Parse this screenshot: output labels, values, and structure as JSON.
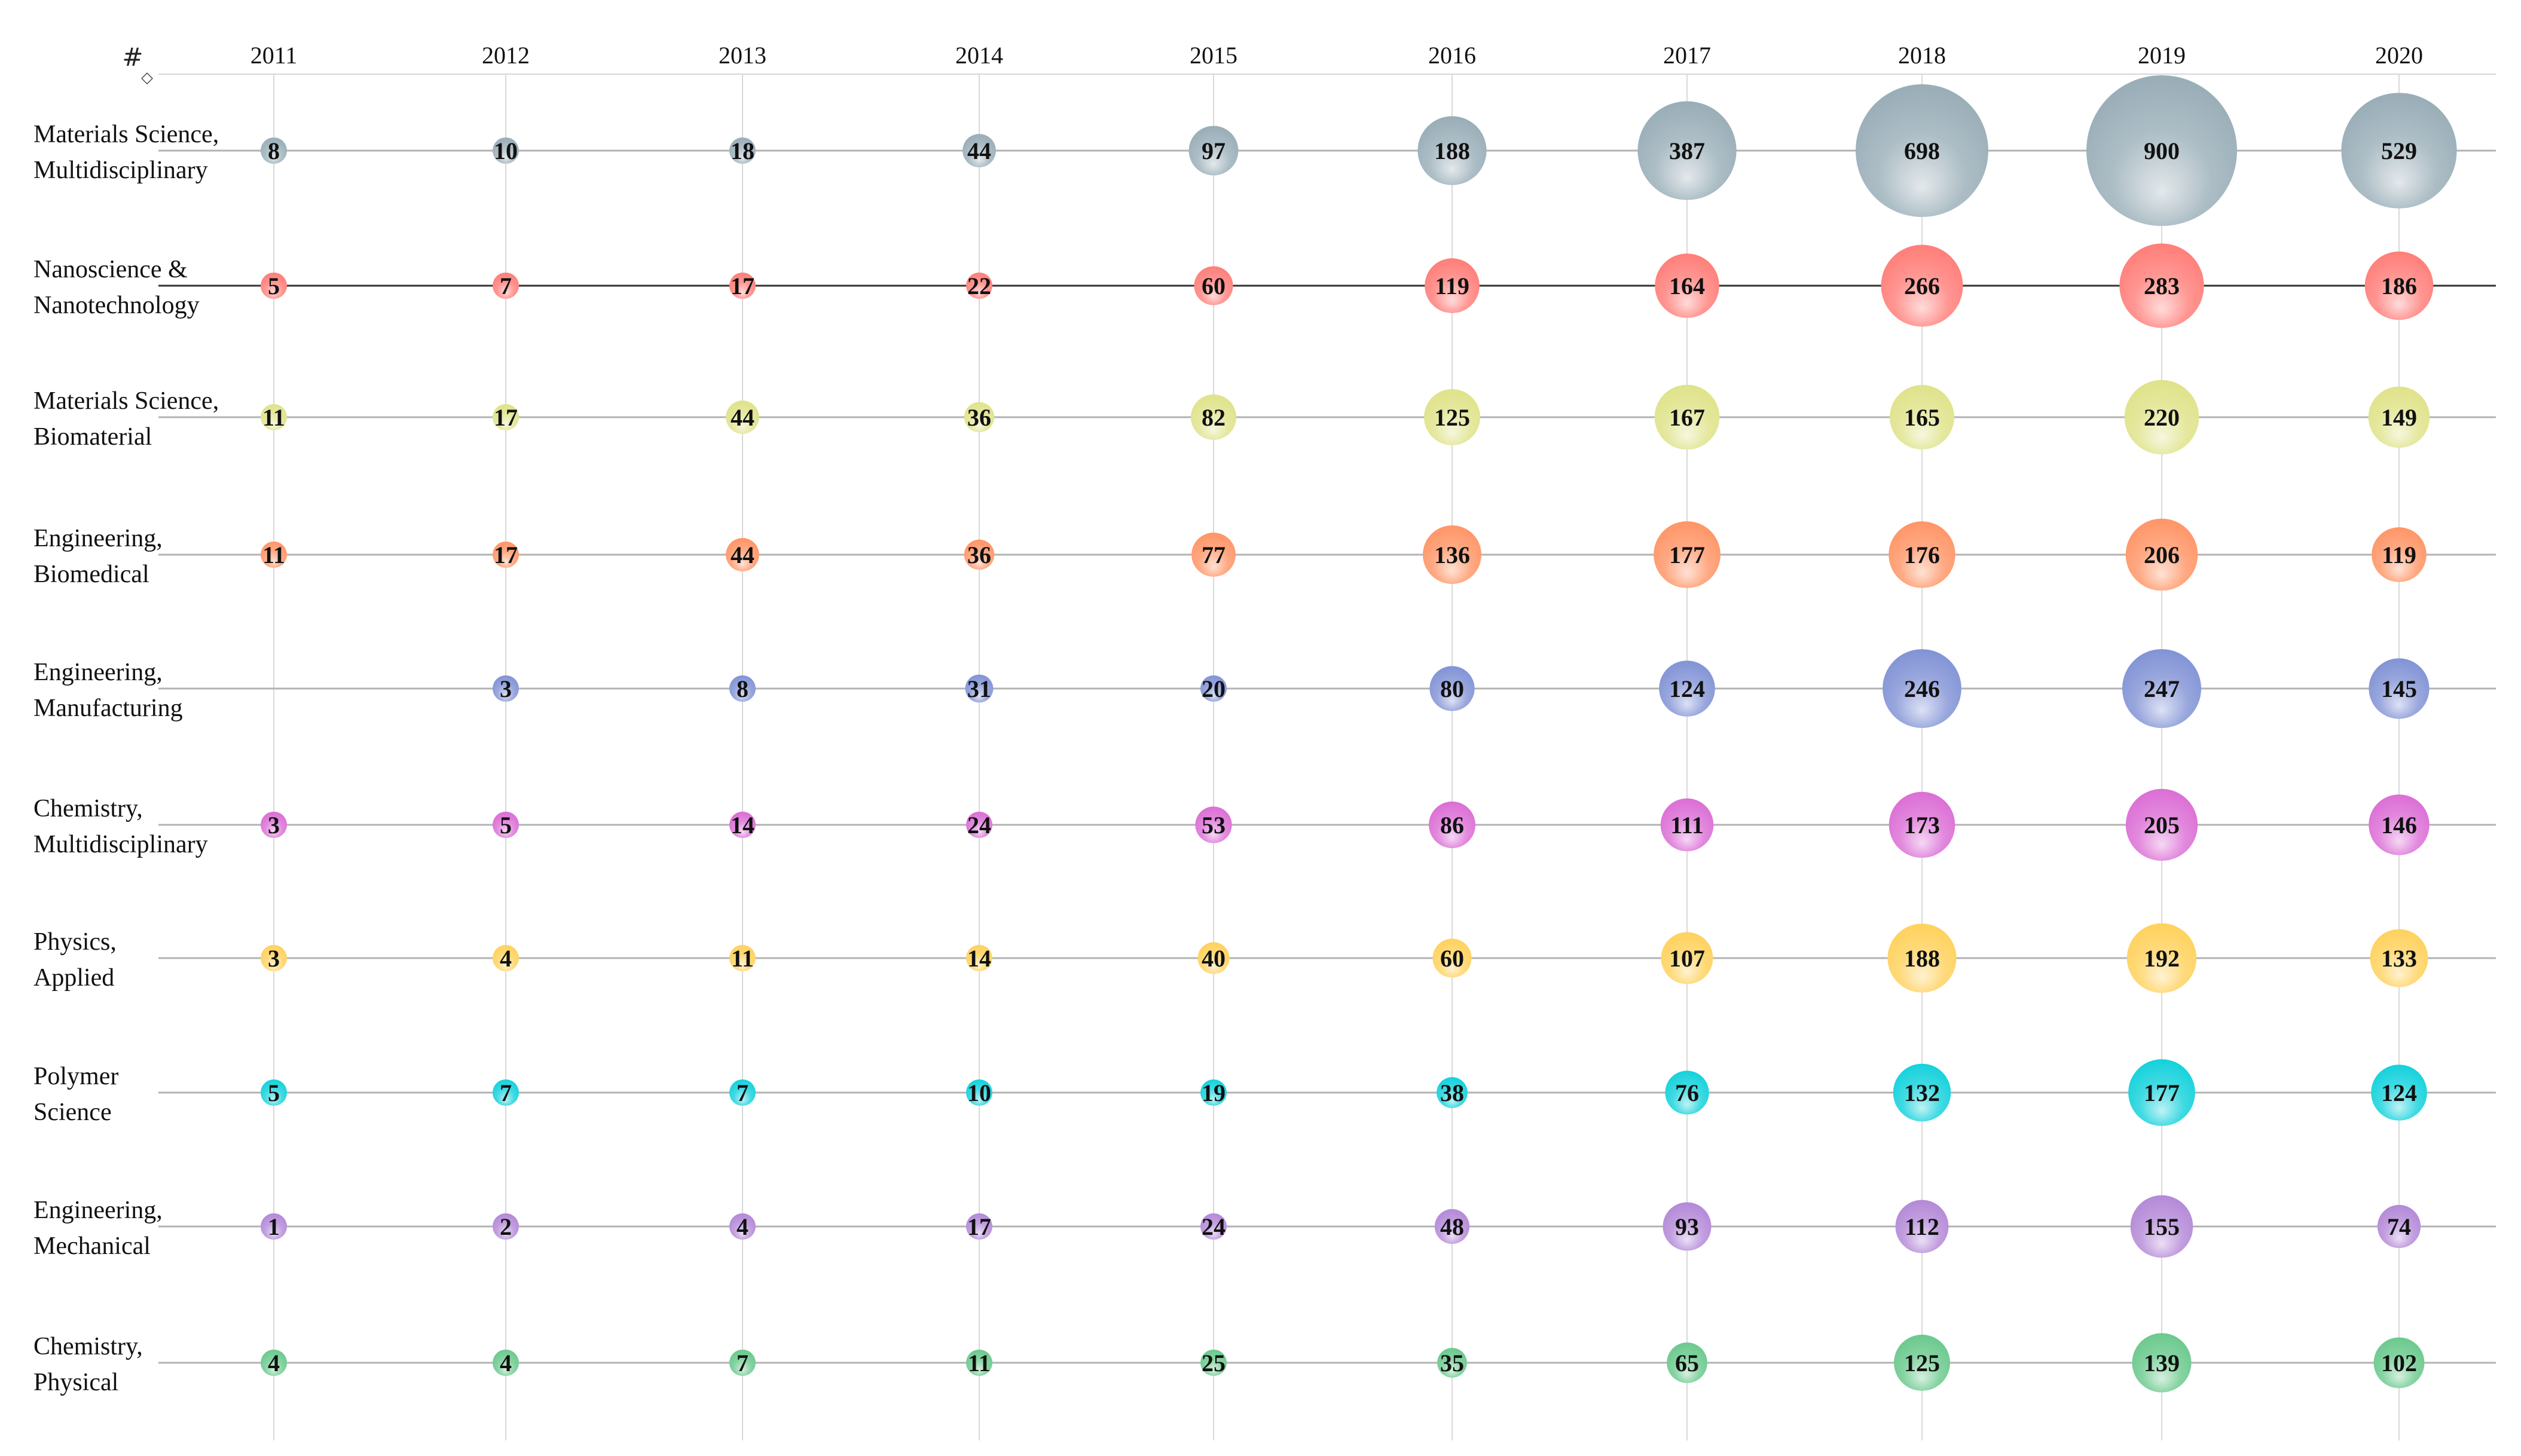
{
  "chart_data": {
    "type": "bubble",
    "corner_icon": "grid-table-icon",
    "years": [
      "2011",
      "2012",
      "2013",
      "2014",
      "2015",
      "2016",
      "2017",
      "2018",
      "2019",
      "2020"
    ],
    "categories": [
      {
        "label_lines": [
          "Materials Science,",
          "Multidisciplinary"
        ],
        "color": "#9aaeb8",
        "values": [
          8,
          10,
          18,
          44,
          97,
          188,
          387,
          698,
          900,
          529
        ]
      },
      {
        "label_lines": [
          "Nanoscience &",
          "Nanotechnology"
        ],
        "color": "#ff7f7a",
        "values": [
          5,
          7,
          17,
          22,
          60,
          119,
          164,
          266,
          283,
          186
        ]
      },
      {
        "label_lines": [
          "Materials Science,",
          "Biomaterial"
        ],
        "color": "#dfe38a",
        "values": [
          11,
          17,
          44,
          36,
          82,
          125,
          167,
          165,
          220,
          149
        ]
      },
      {
        "label_lines": [
          "Engineering,",
          "Biomedical"
        ],
        "color": "#ff9668",
        "values": [
          11,
          17,
          44,
          36,
          77,
          136,
          177,
          176,
          206,
          119
        ]
      },
      {
        "label_lines": [
          "Engineering,",
          "Manufacturing"
        ],
        "color": "#8394d6",
        "values": [
          null,
          3,
          8,
          31,
          20,
          80,
          124,
          246,
          247,
          145
        ]
      },
      {
        "label_lines": [
          "Chemistry,",
          "Multidisciplinary"
        ],
        "color": "#dc6fd6",
        "values": [
          3,
          5,
          14,
          24,
          53,
          86,
          111,
          173,
          205,
          146
        ]
      },
      {
        "label_lines": [
          "Physics,",
          "Applied"
        ],
        "color": "#ffd25e",
        "values": [
          3,
          4,
          11,
          14,
          40,
          60,
          107,
          188,
          192,
          133
        ]
      },
      {
        "label_lines": [
          "Polymer",
          "Science"
        ],
        "color": "#16d2dc",
        "values": [
          5,
          7,
          7,
          10,
          19,
          38,
          76,
          132,
          177,
          124
        ]
      },
      {
        "label_lines": [
          "Engineering,",
          "Mechanical"
        ],
        "color": "#b48ad8",
        "values": [
          1,
          2,
          4,
          17,
          24,
          48,
          93,
          112,
          155,
          74
        ]
      },
      {
        "label_lines": [
          "Chemistry,",
          "Physical"
        ],
        "color": "#6cc98e",
        "values": [
          4,
          4,
          7,
          11,
          25,
          35,
          65,
          125,
          139,
          102
        ]
      }
    ],
    "title": "",
    "xlabel": "",
    "ylabel": "",
    "size_encoding": "value",
    "grid": true
  }
}
